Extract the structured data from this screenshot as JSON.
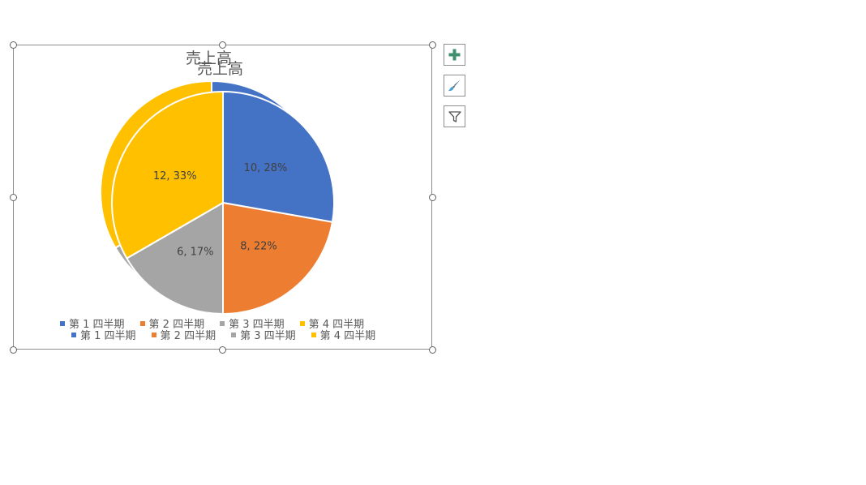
{
  "chart_data": {
    "type": "pie",
    "title": "売上高",
    "categories": [
      "第 1 四半期",
      "第 2 四半期",
      "第 3 四半期",
      "第 4 四半期"
    ],
    "values": [
      10,
      8,
      6,
      12
    ],
    "data_labels": [
      "10, 28%",
      "8, 22%",
      "6, 17%",
      "12, 33%"
    ],
    "colors": [
      "#4472C4",
      "#ED7D31",
      "#A5A5A5",
      "#FFC000"
    ],
    "legend": "bottom"
  },
  "toolbar": {
    "add_element_icon": "plus-icon",
    "style_icon": "brush-icon",
    "filter_icon": "filter-icon"
  }
}
